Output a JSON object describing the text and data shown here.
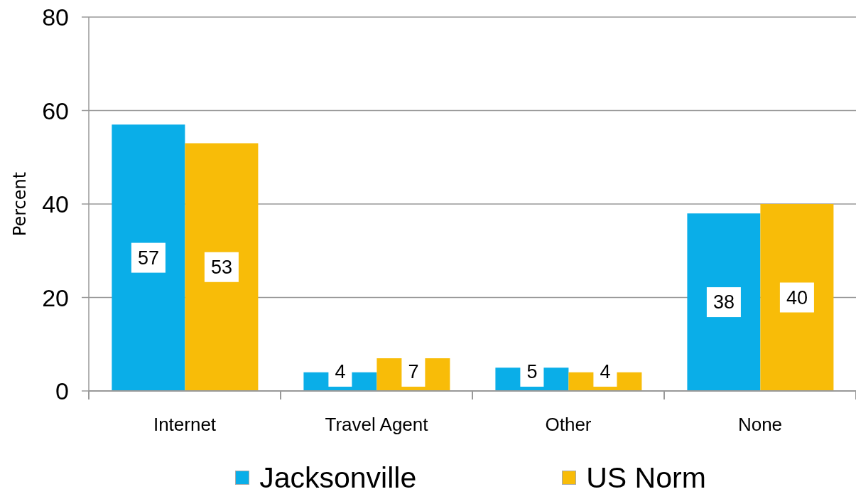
{
  "chart_data": {
    "type": "bar",
    "ylabel": "Percent",
    "categories": [
      "Internet",
      "Travel Agent",
      "Other",
      "None"
    ],
    "series": [
      {
        "name": "Jacksonville",
        "color": "#0aaee8",
        "values": [
          57,
          4,
          5,
          38
        ]
      },
      {
        "name": "US Norm",
        "color": "#f8bc08",
        "values": [
          53,
          7,
          4,
          40
        ]
      }
    ],
    "ylim": [
      0,
      80
    ],
    "yticks": [
      0,
      20,
      40,
      60,
      80
    ],
    "grid": "y",
    "legend": "bottom",
    "data_labels": true
  }
}
